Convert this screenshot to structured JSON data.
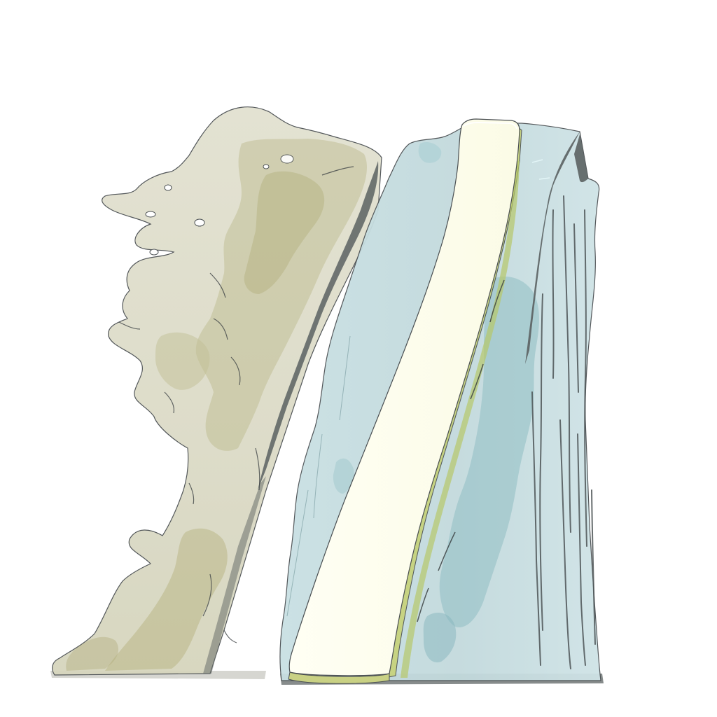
{
  "scene": {
    "background": "#ffffff",
    "colors": {
      "left_mass": "#dcdcc6",
      "left_mass_dark": "#b6b27e",
      "right_mass": "#c6dde0",
      "right_mass_dark": "#8cbcc2",
      "core_slab": "#fefeee",
      "core_edge": "#c8d27c",
      "shadow": "#5c6363",
      "outline": "#4a4f52"
    }
  }
}
